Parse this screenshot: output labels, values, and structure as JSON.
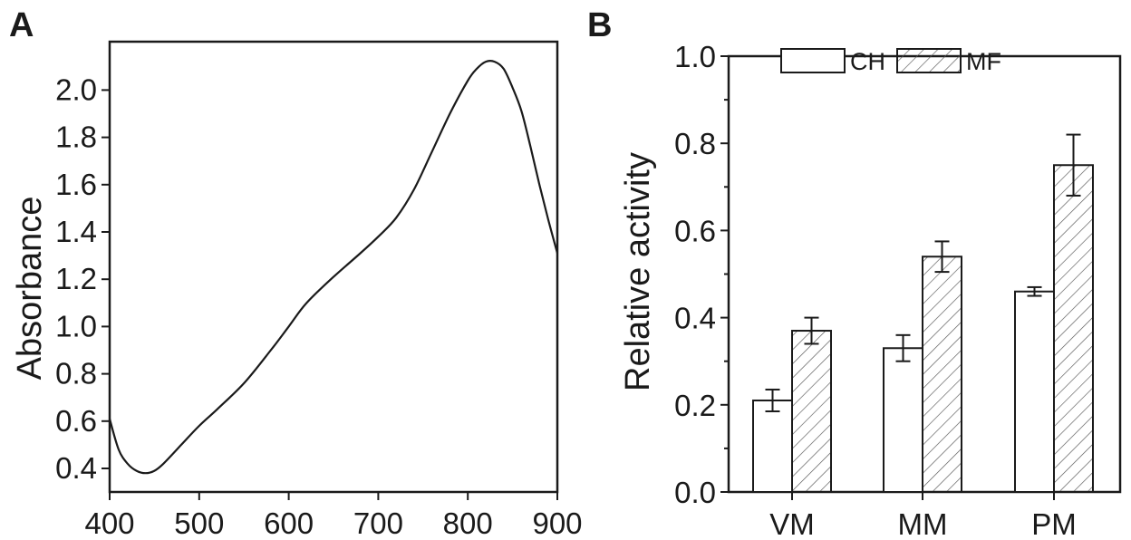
{
  "chart_data": [
    {
      "panel": "A",
      "type": "line",
      "title": "",
      "xlabel": "",
      "ylabel": "Absorbance",
      "xlim": [
        400,
        900
      ],
      "ylim": [
        0.3,
        2.2
      ],
      "xticks": [
        400,
        500,
        600,
        700,
        800,
        900
      ],
      "xtick_labels": [
        "400",
        "500",
        "600",
        "700",
        "800",
        "900"
      ],
      "yticks": [
        0.4,
        0.6,
        0.8,
        1.0,
        1.2,
        1.4,
        1.6,
        1.8,
        2.0
      ],
      "ytick_labels": [
        "0.4",
        "0.6",
        "0.8",
        "1.0",
        "1.2",
        "1.4",
        "1.6",
        "1.8",
        "2.0"
      ],
      "series": [
        {
          "name": "absorbance",
          "x": [
            400,
            410,
            420,
            430,
            440,
            450,
            460,
            480,
            500,
            520,
            550,
            580,
            600,
            620,
            650,
            680,
            700,
            720,
            740,
            760,
            780,
            800,
            810,
            820,
            830,
            840,
            850,
            860,
            870,
            880,
            890,
            900
          ],
          "y": [
            0.61,
            0.48,
            0.42,
            0.39,
            0.38,
            0.39,
            0.42,
            0.5,
            0.58,
            0.65,
            0.76,
            0.9,
            1.0,
            1.1,
            1.21,
            1.31,
            1.38,
            1.46,
            1.58,
            1.74,
            1.9,
            2.04,
            2.09,
            2.12,
            2.12,
            2.09,
            2.01,
            1.91,
            1.76,
            1.6,
            1.45,
            1.31
          ]
        }
      ]
    },
    {
      "panel": "B",
      "type": "bar",
      "title": "",
      "xlabel": "",
      "ylabel": "Relative activity",
      "ylim": [
        0,
        1.0
      ],
      "yticks": [
        0.0,
        0.2,
        0.4,
        0.6,
        0.8,
        1.0
      ],
      "ytick_labels": [
        "0.0",
        "0.2",
        "0.4",
        "0.6",
        "0.8",
        "1.0"
      ],
      "categories": [
        "VM",
        "MM",
        "PM"
      ],
      "legend_position": "top",
      "series": [
        {
          "name": "CH",
          "pattern": "none",
          "values": [
            0.21,
            0.33,
            0.46
          ],
          "errors": [
            0.025,
            0.03,
            0.01
          ]
        },
        {
          "name": "MF",
          "pattern": "hatched",
          "values": [
            0.37,
            0.54,
            0.75
          ],
          "errors": [
            0.03,
            0.035,
            0.07
          ]
        }
      ]
    }
  ],
  "colors": {
    "ink": "#1a1a1a",
    "background": "#ffffff",
    "hatch": "#555555"
  }
}
